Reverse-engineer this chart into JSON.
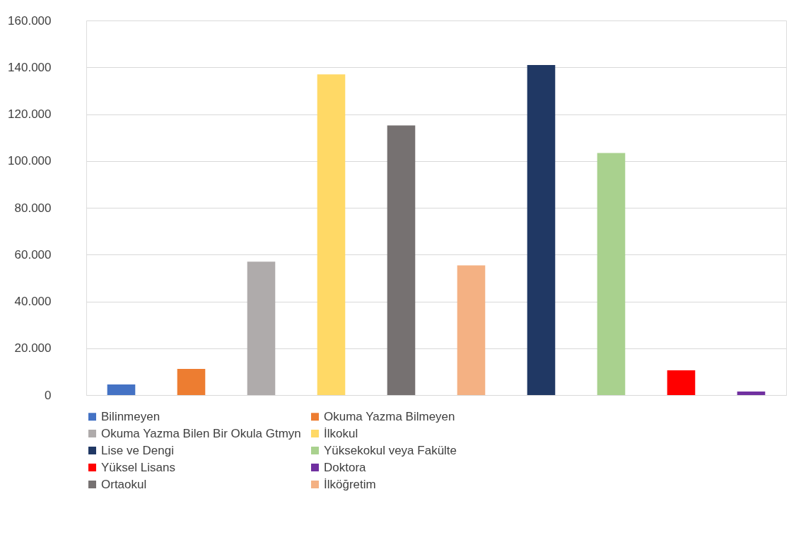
{
  "chart_data": {
    "type": "bar",
    "categories": [
      null,
      null,
      null,
      null,
      null,
      null,
      null,
      null,
      null,
      null
    ],
    "series": [
      {
        "name": "Bilinmeyen",
        "color": "#4472c4",
        "values": [
          4500,
          null,
          null,
          null,
          null,
          null,
          null,
          null,
          null,
          null
        ]
      },
      {
        "name": "Okuma Yazma Bilmeyen",
        "color": "#ed7d31",
        "values": [
          null,
          11200,
          null,
          null,
          null,
          null,
          null,
          null,
          null,
          null
        ]
      },
      {
        "name": "Okuma Yazma Bilen Bir Okula Gtmyn",
        "color": "#afabab",
        "values": [
          null,
          null,
          57000,
          null,
          null,
          null,
          null,
          null,
          null,
          null
        ]
      },
      {
        "name": "İlkokul",
        "color": "#ffd966",
        "values": [
          null,
          null,
          null,
          137000,
          null,
          null,
          null,
          null,
          null,
          null
        ]
      },
      {
        "name": "Lise ve Dengi",
        "color": "#203864",
        "values": [
          null,
          null,
          null,
          null,
          null,
          null,
          141000,
          null,
          null,
          null
        ]
      },
      {
        "name": "Yüksekokul veya Fakülte",
        "color": "#a9d18e",
        "values": [
          null,
          null,
          null,
          null,
          null,
          null,
          null,
          103400,
          null,
          null
        ]
      },
      {
        "name": "Yüksel Lisans",
        "color": "#ff0000",
        "values": [
          null,
          null,
          null,
          null,
          null,
          null,
          null,
          null,
          10600,
          null
        ]
      },
      {
        "name": "Doktora",
        "color": "#7030a0",
        "values": [
          null,
          null,
          null,
          null,
          null,
          null,
          null,
          null,
          null,
          1500
        ]
      },
      {
        "name": "Ortaokul",
        "color": "#767171",
        "values": [
          null,
          null,
          null,
          null,
          115200,
          null,
          null,
          null,
          null,
          null
        ]
      },
      {
        "name": "İlköğretim",
        "color": "#f4b183",
        "values": [
          null,
          null,
          null,
          null,
          null,
          55400,
          null,
          null,
          null,
          null
        ]
      }
    ],
    "ylim": [
      0,
      160000
    ],
    "yticks": [
      0,
      {
        "value": 20000,
        "label": "20.000"
      },
      {
        "value": 40000,
        "label": "40.000"
      },
      {
        "value": 60000,
        "label": "60.000"
      },
      {
        "value": 80000,
        "label": "80.000"
      },
      {
        "value": 100000,
        "label": "100.000"
      },
      {
        "value": 120000,
        "label": "120.000"
      },
      {
        "value": 140000,
        "label": "140.000"
      },
      {
        "value": 160000,
        "label": "160.000"
      }
    ],
    "grid": "y",
    "legend": "bottom"
  }
}
